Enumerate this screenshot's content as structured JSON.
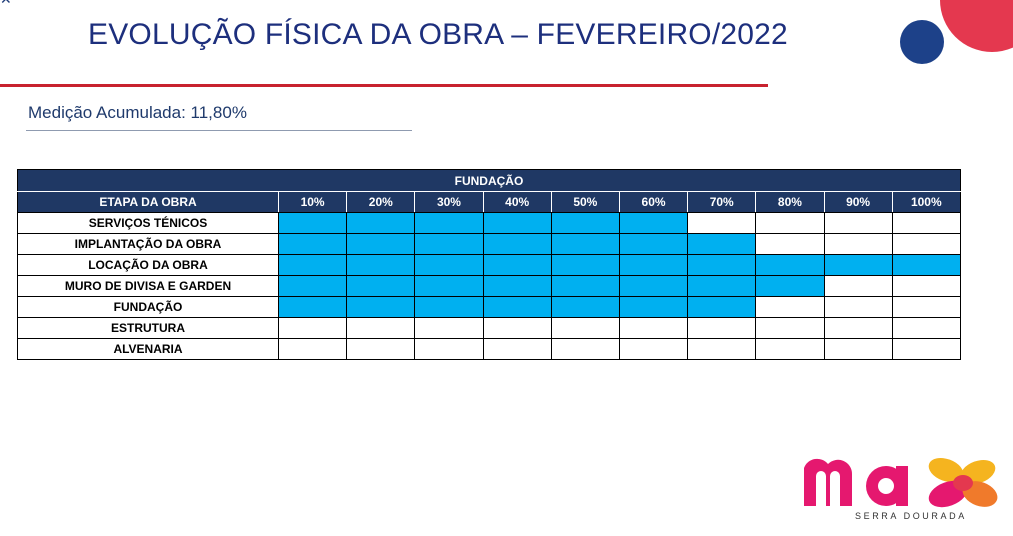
{
  "header": {
    "title": "EVOLUÇÃO FÍSICA DA OBRA  – FEVEREIRO/2022",
    "subtitle": "Medição Acumulada: 11,80%"
  },
  "table": {
    "section_title": "FUNDAÇÃO",
    "stage_header": "ETAPA DA OBRA",
    "percent_headers": [
      "10%",
      "20%",
      "30%",
      "40%",
      "50%",
      "60%",
      "70%",
      "80%",
      "90%",
      "100%"
    ],
    "rows": [
      {
        "stage": "SERVIÇOS TÉNICOS",
        "progress_percent": 60
      },
      {
        "stage": "IMPLANTAÇÃO DA OBRA",
        "progress_percent": 70
      },
      {
        "stage": "LOCAÇÃO DA OBRA",
        "progress_percent": 100
      },
      {
        "stage": "MURO DE DIVISA E GARDEN",
        "progress_percent": 80
      },
      {
        "stage": "FUNDAÇÃO",
        "progress_percent": 70
      },
      {
        "stage": "ESTRUTURA",
        "progress_percent": 0
      },
      {
        "stage": "ALVENARIA",
        "progress_percent": 0
      }
    ],
    "fill_color": "#00b0f0",
    "header_color": "#1f3864"
  },
  "logo": {
    "brand": "max",
    "tagline": "SERRA DOURADA",
    "colors": {
      "pink": "#e5186f",
      "yellow": "#f5b41f",
      "orange": "#f07a2b",
      "red": "#e4384f"
    }
  },
  "decoration": {
    "accent_red": "#c8222f",
    "accent_navy": "#1d4189"
  }
}
